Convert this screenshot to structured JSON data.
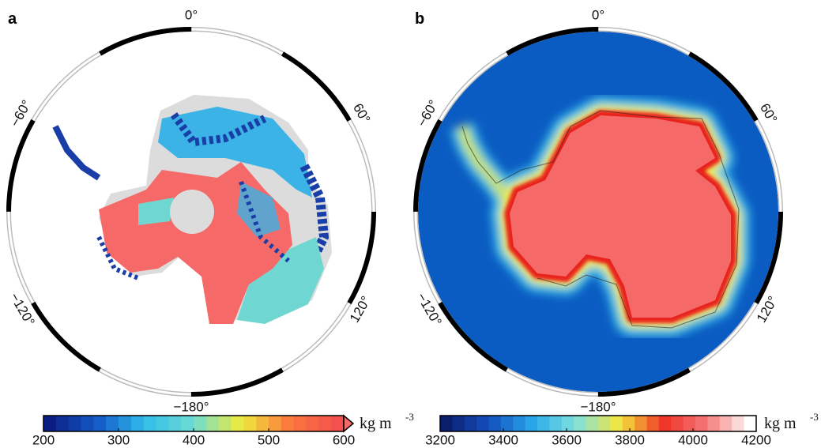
{
  "panels": [
    {
      "label": "a",
      "degree_labels": [
        "0°",
        "60°",
        "120°",
        "−180°",
        "−120°",
        "−60°"
      ],
      "colorbar": {
        "ticks": [
          200,
          300,
          400,
          500,
          600
        ],
        "unit": {
          "base": "kg m",
          "exponent": "-3"
        }
      }
    },
    {
      "label": "b",
      "degree_labels": [
        "0°",
        "60°",
        "120°",
        "−180°",
        "−120°",
        "−60°"
      ],
      "colorbar": {
        "ticks": [
          3200,
          3400,
          3600,
          3800,
          4000,
          4200
        ],
        "unit": {
          "base": "kg m",
          "exponent": "-3"
        }
      }
    }
  ]
}
